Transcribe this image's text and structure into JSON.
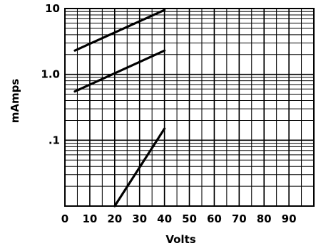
{
  "chart_data": {
    "type": "line",
    "title": "",
    "xlabel": "Volts",
    "ylabel": "mAmps",
    "x_scale": "linear",
    "y_scale": "log",
    "xlim": [
      0,
      100
    ],
    "ylim": [
      0.01,
      10
    ],
    "x_ticks": [
      0,
      10,
      20,
      30,
      40,
      50,
      60,
      70,
      80,
      90
    ],
    "x_tick_labels": [
      "0",
      "10",
      "20",
      "30",
      "40",
      "50",
      "60",
      "70",
      "80",
      "90"
    ],
    "y_ticks": [
      10,
      1.0,
      0.1
    ],
    "y_tick_labels": [
      "10",
      "1.0",
      ".1"
    ],
    "grid": true,
    "legend": "none",
    "series": [
      {
        "x": [
          4,
          40
        ],
        "y": [
          2.3,
          9.5
        ]
      },
      {
        "x": [
          4,
          40
        ],
        "y": [
          0.55,
          2.3
        ]
      },
      {
        "x": [
          20,
          40
        ],
        "y": [
          0.01,
          0.15
        ]
      }
    ]
  }
}
